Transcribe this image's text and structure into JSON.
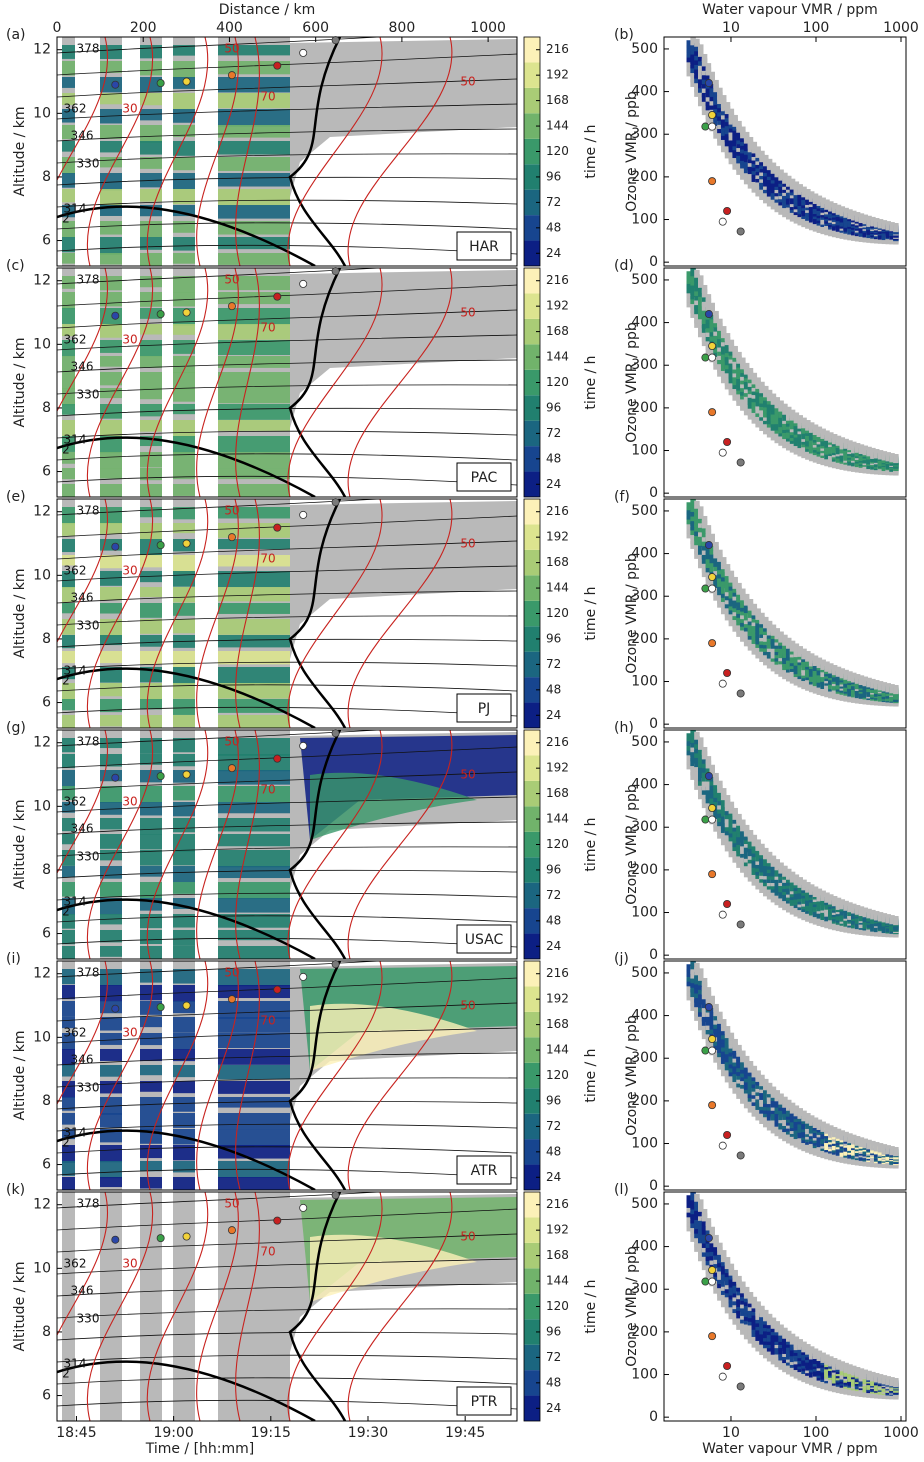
{
  "chart_data": [
    {
      "type": "curtain",
      "label": "(a)",
      "tag": "HAR",
      "ylabel": "Altitude / km",
      "ylim": [
        5.2,
        12.4
      ],
      "yticks": [
        6,
        8,
        10,
        12
      ],
      "xlim": [
        "18:42",
        "19:53"
      ],
      "x2label": "Distance / km",
      "x2lim": [
        0,
        1067
      ],
      "x2ticks": [
        0,
        200,
        400,
        600,
        800,
        1000
      ],
      "clabel": "time / h",
      "clim": [
        12,
        228
      ],
      "cticks": [
        24,
        48,
        72,
        96,
        120,
        144,
        168,
        192,
        216
      ],
      "colormap": [
        "#0c1f84",
        "#17458f",
        "#1b6680",
        "#21806f",
        "#3a996a",
        "#71b36b",
        "#a9cc76",
        "#dce48f",
        "#fcf1b8"
      ],
      "contour_labels": [
        "378",
        "362",
        "346",
        "330",
        "314",
        "2",
        "30",
        "50",
        "70",
        "50"
      ],
      "points": {
        "x": [
          "18:51",
          "18:58",
          "19:02",
          "19:09",
          "19:16",
          "19:20",
          "19:25"
        ],
        "y": [
          10.9,
          10.95,
          11.0,
          11.2,
          11.5,
          11.9,
          12.3
        ],
        "colors": [
          "#2a46a8",
          "#3aa048",
          "#f2d23a",
          "#e8782a",
          "#c82020",
          "#ffffff",
          "#7a7a7a"
        ]
      }
    },
    {
      "type": "scatter",
      "label": "(b)",
      "ylabel": "Ozone VMR / ppb",
      "ylim": [
        -9,
        528
      ],
      "yticks": [
        0,
        100,
        200,
        300,
        400,
        500
      ],
      "xlim": [
        1.63,
        1145
      ],
      "log_x": true,
      "x2label": "Water vapour VMR / ppm",
      "x2ticks": [
        10,
        100,
        1000
      ],
      "colormap": [
        "#0c1f84",
        "#17458f",
        "#1b6680",
        "#21806f",
        "#3a996a",
        "#71b36b",
        "#a9cc76",
        "#dce48f",
        "#fcf1b8"
      ],
      "points": {
        "x": [
          5.5,
          6,
          5,
          6,
          6,
          9,
          8,
          13
        ],
        "y": [
          420,
          345,
          318,
          318,
          190,
          120,
          95,
          72
        ],
        "colors": [
          "#2a46a8",
          "#f2d23a",
          "#3aa048",
          "#ffffff",
          "#e8782a",
          "#c82020",
          "#ffffff",
          "#7a7a7a"
        ]
      }
    },
    {
      "type": "curtain",
      "label": "(c)",
      "tag": "PAC",
      "ylabel": "Altitude / km",
      "ylim": [
        5.2,
        12.4
      ],
      "yticks": [
        6,
        8,
        10,
        12
      ],
      "xlim": [
        "18:42",
        "19:53"
      ],
      "clabel": "time / h",
      "clim": [
        12,
        228
      ],
      "cticks": [
        24,
        48,
        72,
        96,
        120,
        144,
        168,
        192,
        216
      ],
      "colormap": [
        "#0c1f84",
        "#17458f",
        "#1b6680",
        "#21806f",
        "#3a996a",
        "#71b36b",
        "#a9cc76",
        "#dce48f",
        "#fcf1b8"
      ],
      "contour_labels": [
        "378",
        "362",
        "346",
        "330",
        "314",
        "2",
        "30",
        "50",
        "70",
        "50"
      ],
      "points": {
        "x": [
          "18:51",
          "18:58",
          "19:02",
          "19:09",
          "19:16",
          "19:20",
          "19:25"
        ],
        "y": [
          10.9,
          10.95,
          11.0,
          11.2,
          11.5,
          11.9,
          12.3
        ],
        "colors": [
          "#2a46a8",
          "#3aa048",
          "#f2d23a",
          "#e8782a",
          "#c82020",
          "#ffffff",
          "#7a7a7a"
        ]
      }
    },
    {
      "type": "scatter",
      "label": "(d)",
      "ylabel": "Ozone VMR / ppb",
      "ylim": [
        -9,
        528
      ],
      "yticks": [
        0,
        100,
        200,
        300,
        400,
        500
      ],
      "xlim": [
        1.63,
        1145
      ],
      "log_x": true,
      "colormap": [
        "#0c1f84",
        "#17458f",
        "#1b6680",
        "#21806f",
        "#3a996a",
        "#71b36b",
        "#a9cc76",
        "#dce48f",
        "#fcf1b8"
      ],
      "points": {
        "x": [
          5.5,
          6,
          5,
          6,
          6,
          9,
          8,
          13
        ],
        "y": [
          420,
          345,
          318,
          318,
          190,
          120,
          95,
          72
        ],
        "colors": [
          "#2a46a8",
          "#f2d23a",
          "#3aa048",
          "#ffffff",
          "#e8782a",
          "#c82020",
          "#ffffff",
          "#7a7a7a"
        ]
      }
    },
    {
      "type": "curtain",
      "label": "(e)",
      "tag": "PJ",
      "ylabel": "Altitude / km",
      "ylim": [
        5.2,
        12.4
      ],
      "yticks": [
        6,
        8,
        10,
        12
      ],
      "xlim": [
        "18:42",
        "19:53"
      ],
      "clabel": "time / h",
      "clim": [
        12,
        228
      ],
      "cticks": [
        24,
        48,
        72,
        96,
        120,
        144,
        168,
        192,
        216
      ],
      "colormap": [
        "#0c1f84",
        "#17458f",
        "#1b6680",
        "#21806f",
        "#3a996a",
        "#71b36b",
        "#a9cc76",
        "#dce48f",
        "#fcf1b8"
      ],
      "contour_labels": [
        "378",
        "362",
        "346",
        "330",
        "314",
        "2",
        "30",
        "50",
        "70",
        "50"
      ],
      "points": {
        "x": [
          "18:51",
          "18:58",
          "19:02",
          "19:09",
          "19:16",
          "19:20",
          "19:25"
        ],
        "y": [
          10.9,
          10.95,
          11.0,
          11.2,
          11.5,
          11.9,
          12.3
        ],
        "colors": [
          "#2a46a8",
          "#3aa048",
          "#f2d23a",
          "#e8782a",
          "#c82020",
          "#ffffff",
          "#7a7a7a"
        ]
      }
    },
    {
      "type": "scatter",
      "label": "(f)",
      "ylabel": "Ozone VMR / ppb",
      "ylim": [
        -9,
        528
      ],
      "yticks": [
        0,
        100,
        200,
        300,
        400,
        500
      ],
      "xlim": [
        1.63,
        1145
      ],
      "log_x": true,
      "colormap": [
        "#0c1f84",
        "#17458f",
        "#1b6680",
        "#21806f",
        "#3a996a",
        "#71b36b",
        "#a9cc76",
        "#dce48f",
        "#fcf1b8"
      ],
      "points": {
        "x": [
          5.5,
          6,
          5,
          6,
          6,
          9,
          8,
          13
        ],
        "y": [
          420,
          345,
          318,
          318,
          190,
          120,
          95,
          72
        ],
        "colors": [
          "#2a46a8",
          "#f2d23a",
          "#3aa048",
          "#ffffff",
          "#e8782a",
          "#c82020",
          "#ffffff",
          "#7a7a7a"
        ]
      }
    },
    {
      "type": "curtain",
      "label": "(g)",
      "tag": "USAC",
      "ylabel": "Altitude / km",
      "ylim": [
        5.2,
        12.4
      ],
      "yticks": [
        6,
        8,
        10,
        12
      ],
      "xlim": [
        "18:42",
        "19:53"
      ],
      "clabel": "time / h",
      "clim": [
        12,
        228
      ],
      "cticks": [
        24,
        48,
        72,
        96,
        120,
        144,
        168,
        192,
        216
      ],
      "colormap": [
        "#0c1f84",
        "#17458f",
        "#1b6680",
        "#21806f",
        "#3a996a",
        "#71b36b",
        "#a9cc76",
        "#dce48f",
        "#fcf1b8"
      ],
      "contour_labels": [
        "378",
        "362",
        "346",
        "330",
        "314",
        "2",
        "30",
        "50",
        "70",
        "50"
      ],
      "points": {
        "x": [
          "18:51",
          "18:58",
          "19:02",
          "19:09",
          "19:16",
          "19:20",
          "19:25"
        ],
        "y": [
          10.9,
          10.95,
          11.0,
          11.2,
          11.5,
          11.9,
          12.3
        ],
        "colors": [
          "#2a46a8",
          "#3aa048",
          "#f2d23a",
          "#e8782a",
          "#c82020",
          "#ffffff",
          "#7a7a7a"
        ]
      }
    },
    {
      "type": "scatter",
      "label": "(h)",
      "ylabel": "Ozone VMR / ppb",
      "ylim": [
        -9,
        528
      ],
      "yticks": [
        0,
        100,
        200,
        300,
        400,
        500
      ],
      "xlim": [
        1.63,
        1145
      ],
      "log_x": true,
      "colormap": [
        "#0c1f84",
        "#17458f",
        "#1b6680",
        "#21806f",
        "#3a996a",
        "#71b36b",
        "#a9cc76",
        "#dce48f",
        "#fcf1b8"
      ],
      "points": {
        "x": [
          5.5,
          6,
          5,
          6,
          6,
          9,
          8,
          13
        ],
        "y": [
          420,
          345,
          318,
          318,
          190,
          120,
          95,
          72
        ],
        "colors": [
          "#2a46a8",
          "#f2d23a",
          "#3aa048",
          "#ffffff",
          "#e8782a",
          "#c82020",
          "#ffffff",
          "#7a7a7a"
        ]
      }
    },
    {
      "type": "curtain",
      "label": "(i)",
      "tag": "ATR",
      "ylabel": "Altitude / km",
      "ylim": [
        5.2,
        12.4
      ],
      "yticks": [
        6,
        8,
        10,
        12
      ],
      "xlim": [
        "18:42",
        "19:53"
      ],
      "clabel": "time / h",
      "clim": [
        12,
        228
      ],
      "cticks": [
        24,
        48,
        72,
        96,
        120,
        144,
        168,
        192,
        216
      ],
      "colormap": [
        "#0c1f84",
        "#17458f",
        "#1b6680",
        "#21806f",
        "#3a996a",
        "#71b36b",
        "#a9cc76",
        "#dce48f",
        "#fcf1b8"
      ],
      "contour_labels": [
        "378",
        "362",
        "346",
        "330",
        "314",
        "2",
        "30",
        "50",
        "70",
        "50"
      ],
      "points": {
        "x": [
          "18:51",
          "18:58",
          "19:02",
          "19:09",
          "19:16",
          "19:20",
          "19:25"
        ],
        "y": [
          10.9,
          10.95,
          11.0,
          11.2,
          11.5,
          11.9,
          12.3
        ],
        "colors": [
          "#2a46a8",
          "#3aa048",
          "#f2d23a",
          "#e8782a",
          "#c82020",
          "#ffffff",
          "#7a7a7a"
        ]
      }
    },
    {
      "type": "scatter",
      "label": "(j)",
      "ylabel": "Ozone VMR / ppb",
      "ylim": [
        -9,
        528
      ],
      "yticks": [
        0,
        100,
        200,
        300,
        400,
        500
      ],
      "xlim": [
        1.63,
        1145
      ],
      "log_x": true,
      "colormap": [
        "#0c1f84",
        "#17458f",
        "#1b6680",
        "#21806f",
        "#3a996a",
        "#71b36b",
        "#a9cc76",
        "#dce48f",
        "#fcf1b8"
      ],
      "points": {
        "x": [
          5.5,
          6,
          5,
          6,
          6,
          9,
          8,
          13
        ],
        "y": [
          420,
          345,
          318,
          318,
          190,
          120,
          95,
          72
        ],
        "colors": [
          "#2a46a8",
          "#f2d23a",
          "#3aa048",
          "#ffffff",
          "#e8782a",
          "#c82020",
          "#ffffff",
          "#7a7a7a"
        ]
      }
    },
    {
      "type": "curtain",
      "label": "(k)",
      "tag": "PTR",
      "ylabel": "Altitude / km",
      "ylim": [
        5.2,
        12.4
      ],
      "yticks": [
        6,
        8,
        10,
        12
      ],
      "xlim": [
        "18:42",
        "19:53"
      ],
      "xlabel": "Time / [hh:mm]",
      "xticks": [
        "18:45",
        "19:00",
        "19:15",
        "19:30",
        "19:45"
      ],
      "clabel": "time / h",
      "clim": [
        12,
        228
      ],
      "cticks": [
        24,
        48,
        72,
        96,
        120,
        144,
        168,
        192,
        216
      ],
      "colormap": [
        "#0c1f84",
        "#17458f",
        "#1b6680",
        "#21806f",
        "#3a996a",
        "#71b36b",
        "#a9cc76",
        "#dce48f",
        "#fcf1b8"
      ],
      "contour_labels": [
        "378",
        "362",
        "346",
        "330",
        "314",
        "2",
        "30",
        "50",
        "70",
        "50"
      ],
      "points": {
        "x": [
          "18:51",
          "18:58",
          "19:02",
          "19:09",
          "19:16",
          "19:20",
          "19:25"
        ],
        "y": [
          10.9,
          10.95,
          11.0,
          11.2,
          11.5,
          11.9,
          12.3
        ],
        "colors": [
          "#2a46a8",
          "#3aa048",
          "#f2d23a",
          "#e8782a",
          "#c82020",
          "#ffffff",
          "#7a7a7a"
        ]
      }
    },
    {
      "type": "scatter",
      "label": "(l)",
      "ylabel": "Ozone VMR / ppb",
      "ylim": [
        -9,
        528
      ],
      "yticks": [
        0,
        100,
        200,
        300,
        400,
        500
      ],
      "xlim": [
        1.63,
        1145
      ],
      "log_x": true,
      "xlabel": "Water vapour VMR / ppm",
      "xticks": [
        10,
        100,
        1000
      ],
      "colormap": [
        "#0c1f84",
        "#17458f",
        "#1b6680",
        "#21806f",
        "#3a996a",
        "#71b36b",
        "#a9cc76",
        "#dce48f",
        "#fcf1b8"
      ],
      "points": {
        "x": [
          5.5,
          6,
          5,
          6,
          6,
          9,
          8,
          13
        ],
        "y": [
          420,
          345,
          318,
          318,
          190,
          120,
          95,
          72
        ],
        "colors": [
          "#2a46a8",
          "#f2d23a",
          "#3aa048",
          "#ffffff",
          "#e8782a",
          "#c82020",
          "#ffffff",
          "#7a7a7a"
        ]
      }
    }
  ]
}
